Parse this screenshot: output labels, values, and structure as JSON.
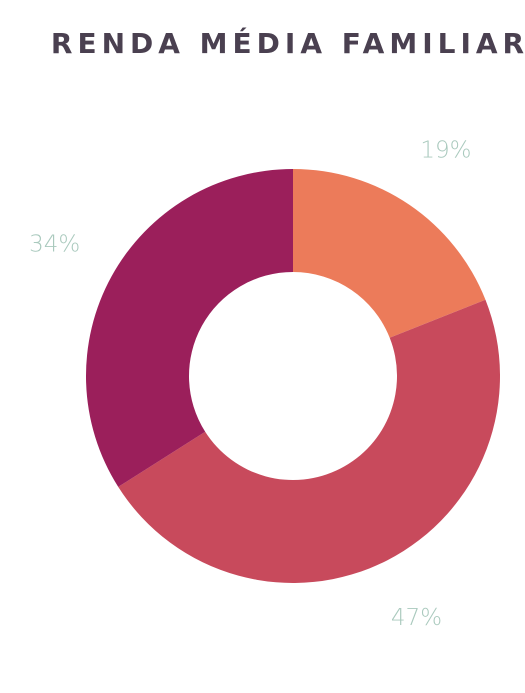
{
  "chart_data": {
    "type": "donut",
    "title": "RENDA MÉDIA FAMILIAR",
    "values": [
      19,
      47,
      34
    ],
    "value_labels": [
      "19%",
      "47%",
      "34%"
    ],
    "colors": [
      "#ec7b5a",
      "#c84a5c",
      "#9b1f5b"
    ]
  }
}
